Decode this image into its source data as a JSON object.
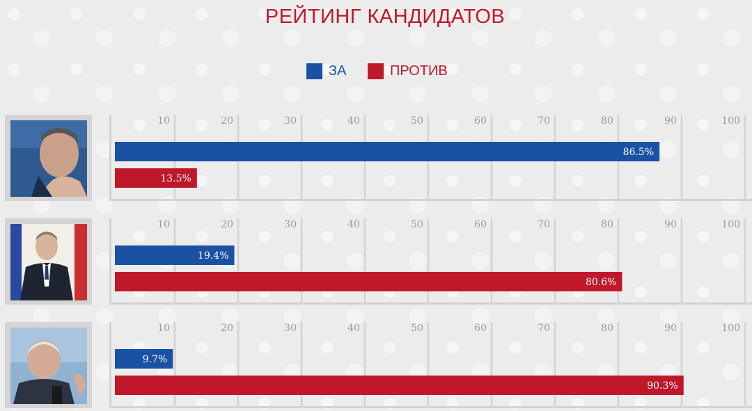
{
  "title": "РЕЙТИНГ КАНДИДАТОВ",
  "legend": [
    {
      "label": "ЗА",
      "color": "#1a52a3"
    },
    {
      "label": "ПРОТИВ",
      "color": "#c0182b"
    }
  ],
  "colors": {
    "for": "#1a52a3",
    "against": "#c0182b",
    "title": "#c0182b"
  },
  "chart_data": {
    "type": "bar",
    "orientation": "horizontal",
    "title": "РЕЙТИНГ КАНДИДАТОВ",
    "xlim": [
      0,
      100
    ],
    "ticks": [
      10,
      20,
      30,
      40,
      50,
      60,
      70,
      80,
      90,
      100
    ],
    "grid": true,
    "legend_position": "top-center",
    "groups": [
      {
        "series": [
          {
            "name": "ЗА",
            "value": 86.5,
            "label": "86.5%"
          },
          {
            "name": "ПРОТИВ",
            "value": 13.5,
            "label": "13.5%"
          }
        ]
      },
      {
        "series": [
          {
            "name": "ЗА",
            "value": 19.4,
            "label": "19.4%"
          },
          {
            "name": "ПРОТИВ",
            "value": 80.6,
            "label": "80.6%"
          }
        ]
      },
      {
        "series": [
          {
            "name": "ЗА",
            "value": 9.7,
            "label": "9.7%"
          },
          {
            "name": "ПРОТИВ",
            "value": 90.3,
            "label": "90.3%"
          }
        ]
      }
    ]
  }
}
